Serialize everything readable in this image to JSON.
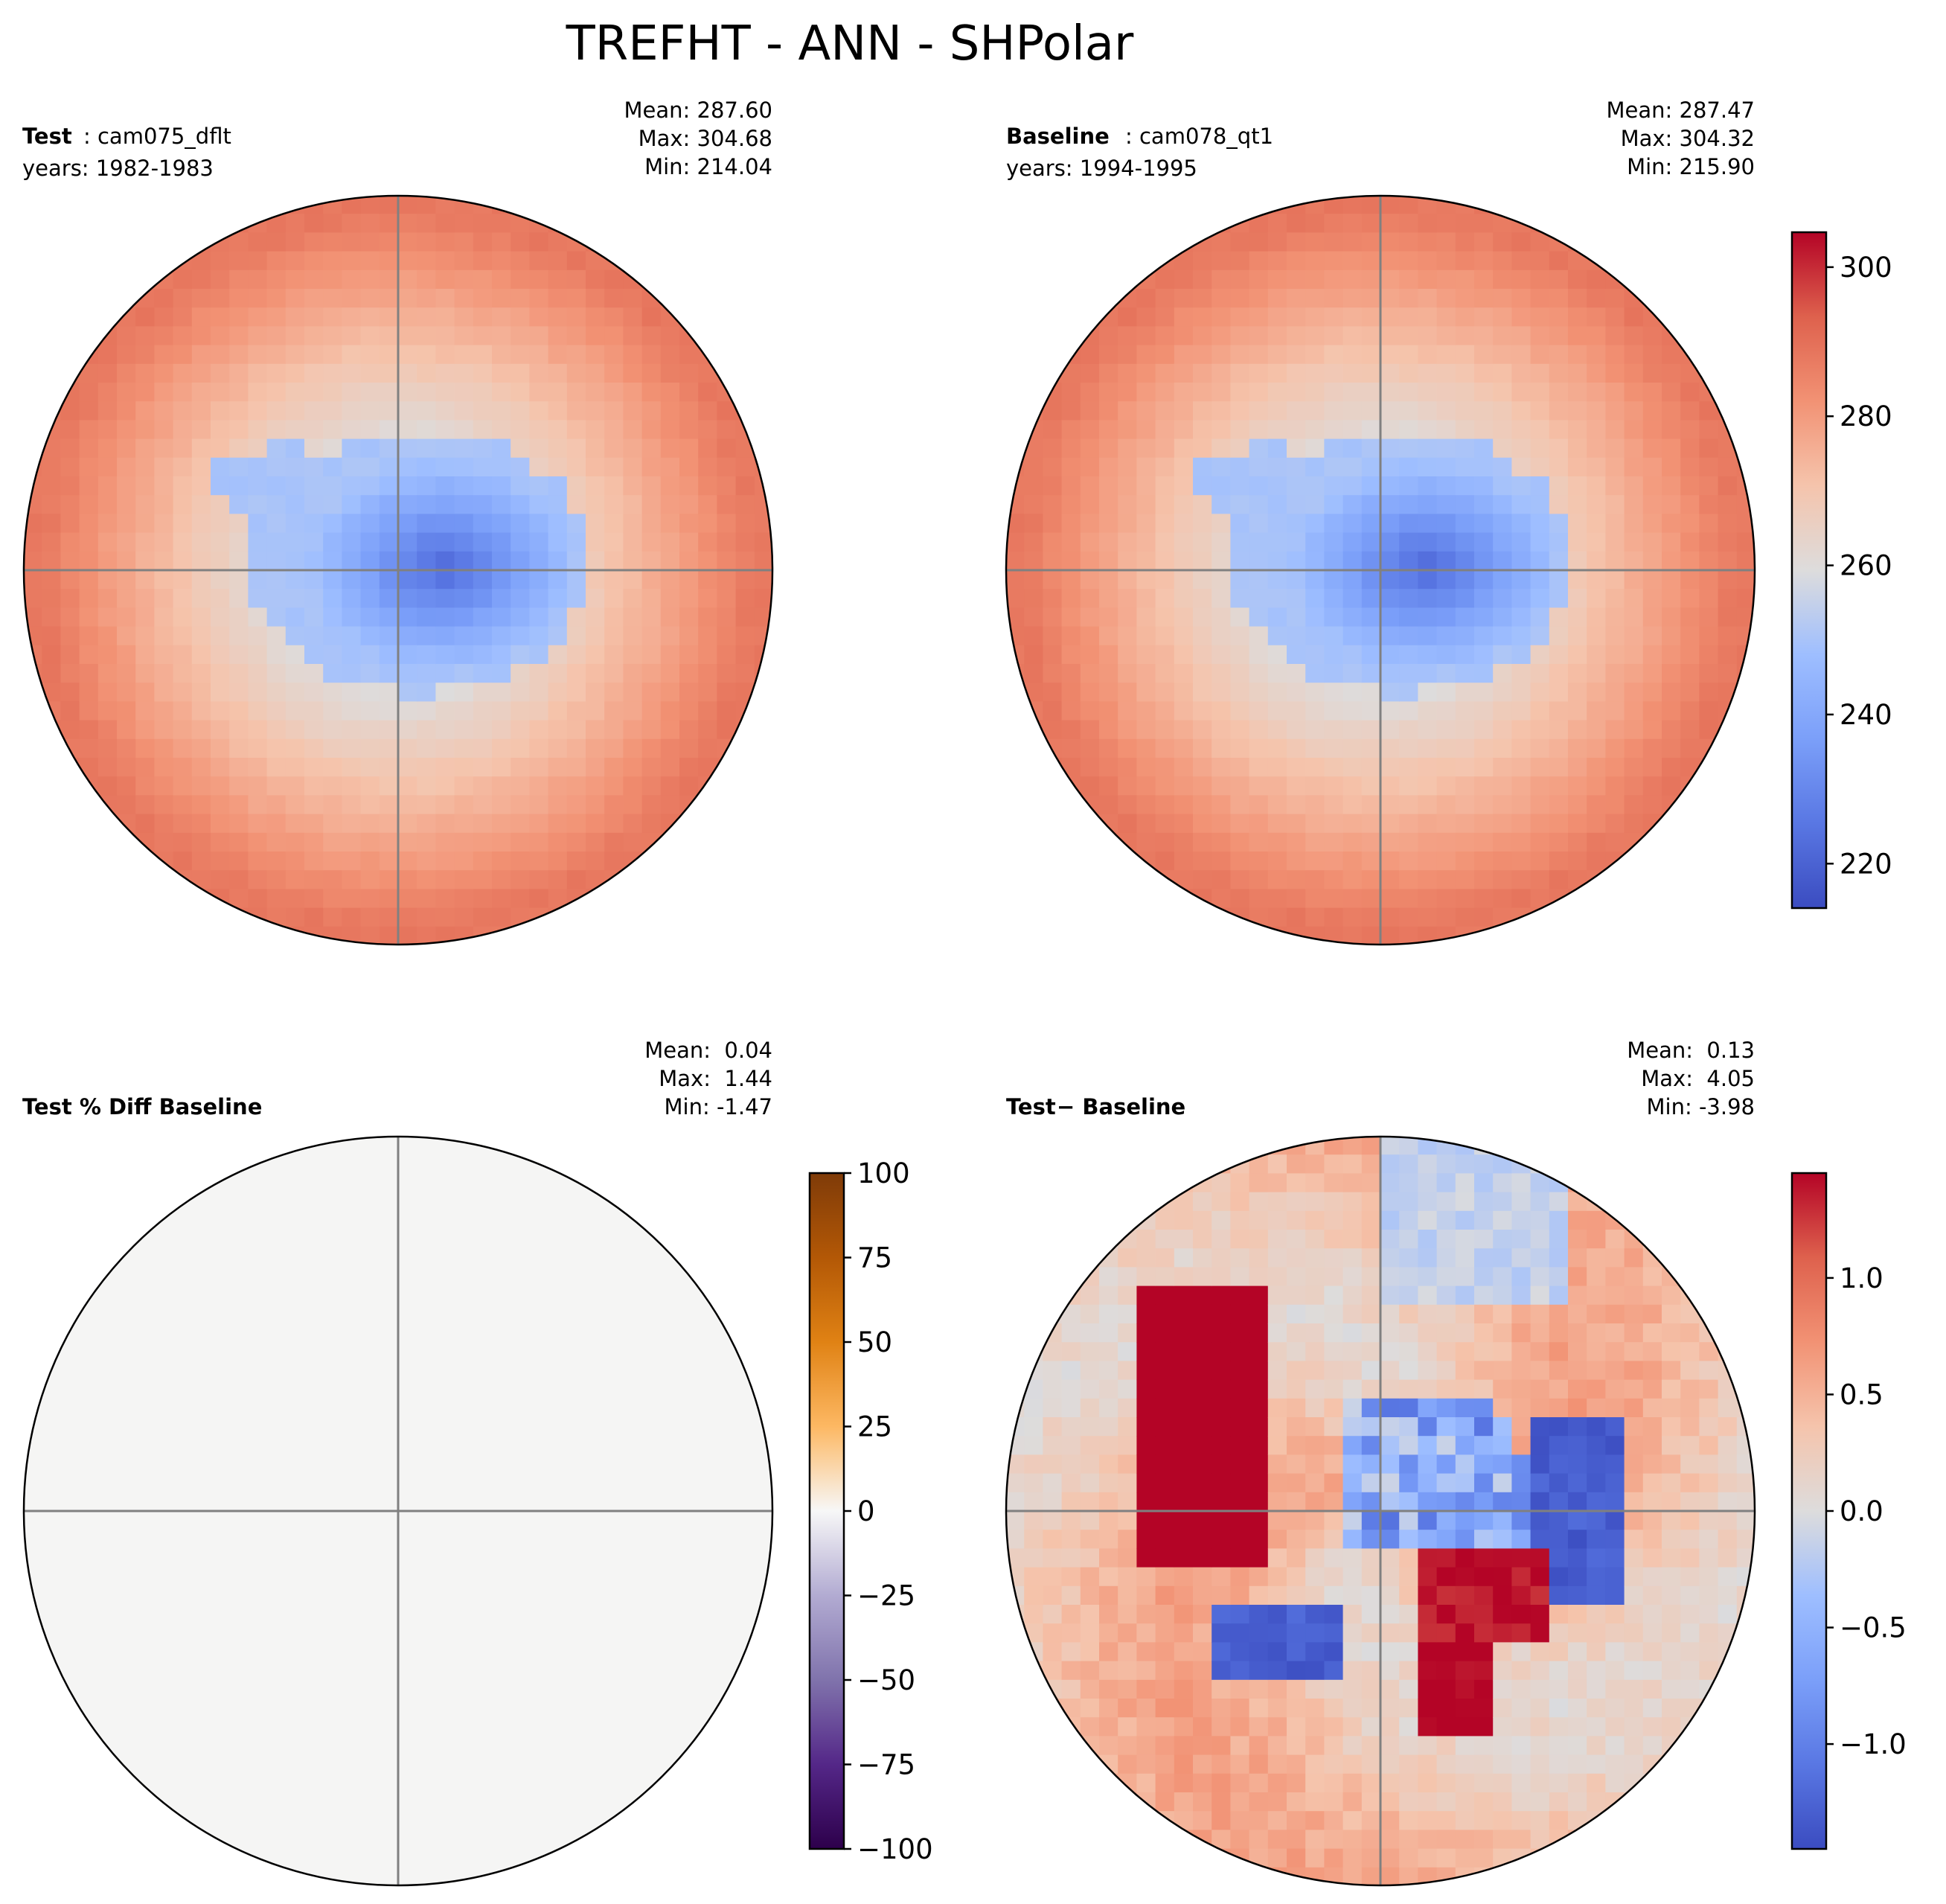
{
  "figure": {
    "title": "TREFHT - ANN - SHPolar"
  },
  "chart_data": [
    {
      "type": "heatmap",
      "panel": "test",
      "label_bold": "Test",
      "label_rest": ": cam075_dflt",
      "years": "years: 1982-1983",
      "stats": [
        "Mean: 287.60",
        "Max: 304.68",
        "Min: 214.04"
      ],
      "colormap": "coolwarm",
      "vmin": 214.04,
      "vmax": 304.68,
      "field": "temperature"
    },
    {
      "type": "heatmap",
      "panel": "baseline",
      "label_bold": "Baseline",
      "label_rest": ": cam078_qt1",
      "years": "years: 1994-1995",
      "stats": [
        "Mean: 287.47",
        "Max: 304.32",
        "Min: 215.90"
      ],
      "colormap": "coolwarm",
      "vmin": 214.04,
      "vmax": 304.68,
      "field": "temperature",
      "colorbar": {
        "ticks": [
          220,
          240,
          260,
          280,
          300
        ],
        "tick_labels": [
          "220",
          "240",
          "260",
          "280",
          "300"
        ],
        "range": [
          214.04,
          304.68
        ]
      }
    },
    {
      "type": "heatmap",
      "panel": "pctdiff",
      "label_bold": "Test % Diff Baseline",
      "label_rest": "",
      "years": "",
      "stats": [
        "Mean:  0.04",
        "Max:  1.44",
        "Min: -1.47"
      ],
      "colormap": "PuOr_r",
      "vmin": -100,
      "vmax": 100,
      "field": "pct",
      "colorbar": {
        "ticks": [
          100,
          75,
          50,
          25,
          0,
          -25,
          -50,
          -75,
          -100
        ],
        "tick_labels": [
          "100",
          "75",
          "50",
          "25",
          "0",
          "−25",
          "−50",
          "−75",
          "−100"
        ],
        "range": [
          -100,
          100
        ]
      }
    },
    {
      "type": "heatmap",
      "panel": "diff",
      "label_bold": "Test",
      "label_rest": " − Baseline",
      "years": "",
      "stats": [
        "Mean:  0.13",
        "Max:  4.05",
        "Min: -3.98"
      ],
      "colormap": "coolwarm",
      "vmin": -1.45,
      "vmax": 1.45,
      "field": "diff",
      "colorbar": {
        "ticks": [
          1.0,
          0.5,
          0.0,
          -0.5,
          -1.0
        ],
        "tick_labels": [
          "1.0",
          "0.5",
          "0.0",
          "−0.5",
          "−1.0"
        ],
        "range": [
          -1.45,
          1.45
        ]
      }
    }
  ]
}
